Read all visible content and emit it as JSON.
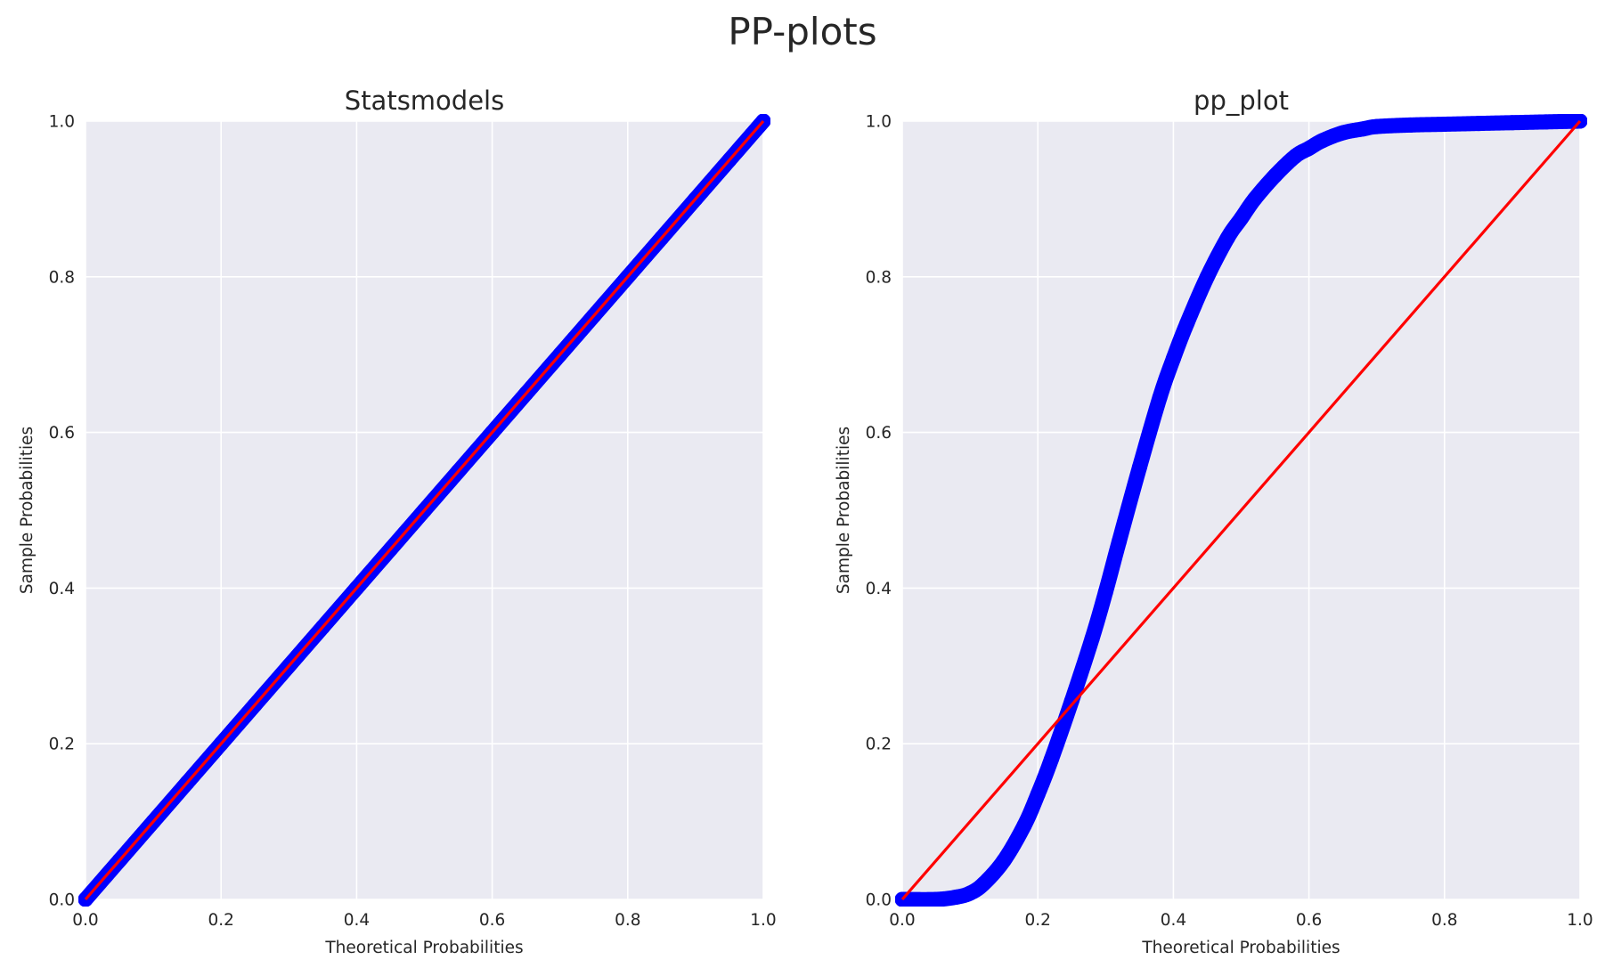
{
  "figure": {
    "title": "PP-plots",
    "background": "#FFFFFF"
  },
  "chart_data": [
    {
      "type": "scatter",
      "title": "Statsmodels",
      "xlabel": "Theoretical Probabilities",
      "ylabel": "Sample Probabilities",
      "xlim": [
        0.0,
        1.0
      ],
      "ylim": [
        0.0,
        1.0
      ],
      "xticks": [
        "0.0",
        "0.2",
        "0.4",
        "0.6",
        "0.8",
        "1.0"
      ],
      "yticks": [
        "0.0",
        "0.2",
        "0.4",
        "0.6",
        "0.8",
        "1.0"
      ],
      "grid": true,
      "plot_background": "#EAEAF2",
      "series": [
        {
          "kind": "markers",
          "color": "#0000FF",
          "x": [
            0.0,
            0.05,
            0.1,
            0.15,
            0.2,
            0.25,
            0.3,
            0.35,
            0.4,
            0.45,
            0.5,
            0.55,
            0.6,
            0.65,
            0.7,
            0.75,
            0.8,
            0.85,
            0.9,
            0.95,
            1.0
          ],
          "y": [
            0.0,
            0.05,
            0.1,
            0.15,
            0.2,
            0.25,
            0.3,
            0.35,
            0.4,
            0.45,
            0.5,
            0.55,
            0.6,
            0.65,
            0.7,
            0.75,
            0.8,
            0.85,
            0.9,
            0.95,
            1.0
          ]
        },
        {
          "kind": "reference-line",
          "color": "#FF0000",
          "x": [
            0.0,
            1.0
          ],
          "y": [
            0.0,
            1.0
          ]
        }
      ]
    },
    {
      "type": "scatter",
      "title": "pp_plot",
      "xlabel": "Theoretical Probabilities",
      "ylabel": "Sample Probabilities",
      "xlim": [
        0.0,
        1.0
      ],
      "ylim": [
        0.0,
        1.0
      ],
      "xticks": [
        "0.0",
        "0.2",
        "0.4",
        "0.6",
        "0.8",
        "1.0"
      ],
      "yticks": [
        "0.0",
        "0.2",
        "0.4",
        "0.6",
        "0.8",
        "1.0"
      ],
      "grid": true,
      "plot_background": "#EAEAF2",
      "series": [
        {
          "kind": "markers",
          "color": "#0000FF",
          "x": [
            0.0,
            0.05,
            0.08,
            0.1,
            0.12,
            0.15,
            0.18,
            0.2,
            0.22,
            0.25,
            0.28,
            0.3,
            0.32,
            0.35,
            0.38,
            0.4,
            0.42,
            0.45,
            0.48,
            0.5,
            0.52,
            0.55,
            0.58,
            0.6,
            0.62,
            0.65,
            0.68,
            0.7,
            0.75,
            0.8,
            0.85,
            0.9,
            0.95,
            1.0
          ],
          "y": [
            0.0,
            0.0,
            0.003,
            0.008,
            0.02,
            0.05,
            0.095,
            0.135,
            0.18,
            0.255,
            0.335,
            0.395,
            0.46,
            0.555,
            0.645,
            0.695,
            0.74,
            0.8,
            0.85,
            0.875,
            0.9,
            0.93,
            0.955,
            0.965,
            0.975,
            0.985,
            0.99,
            0.993,
            0.995,
            0.996,
            0.997,
            0.998,
            0.999,
            1.0
          ]
        },
        {
          "kind": "reference-line",
          "color": "#FF0000",
          "x": [
            0.0,
            1.0
          ],
          "y": [
            0.0,
            1.0
          ]
        }
      ]
    }
  ]
}
